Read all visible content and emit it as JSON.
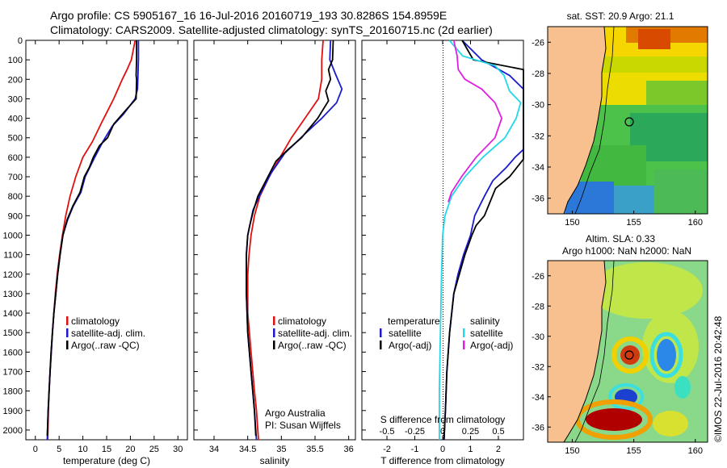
{
  "header": {
    "line1": "Argo profile: CS 5905167_16 16-Jul-2016 20160719_193 30.8286S 154.8959E",
    "line2": "Climatology: CARS2009. Satellite-adjusted climatology: synTS_20160715.nc (2d earlier)"
  },
  "colors": {
    "climatology": "#e01010",
    "satellite": "#1a1acc",
    "argo": "#000000",
    "salinity_satellite": "#22d8e8",
    "salinity_argo": "#e020e0"
  },
  "chart_data": [
    {
      "type": "line",
      "id": "temperature",
      "xlabel": "temperature (deg C)",
      "ylim": [
        2050,
        0
      ],
      "xlim": [
        -2,
        32
      ],
      "xticks": [
        "0",
        "5",
        "10",
        "15",
        "20",
        "25",
        "30"
      ],
      "yticks": [
        "0",
        "100",
        "200",
        "300",
        "400",
        "500",
        "600",
        "700",
        "800",
        "900",
        "1000",
        "1100",
        "1200",
        "1300",
        "1400",
        "1500",
        "1600",
        "1700",
        "1800",
        "1900",
        "2000"
      ],
      "legend": [
        "climatology",
        "satellite-adj. clim.",
        "Argo(..raw -QC)"
      ],
      "series": [
        {
          "name": "climatology",
          "color": "#e01010",
          "points": [
            [
              21,
              0
            ],
            [
              20.2,
              100
            ],
            [
              19.3,
              150
            ],
            [
              18.3,
              200
            ],
            [
              16.5,
              300
            ],
            [
              14,
              420
            ],
            [
              12,
              520
            ],
            [
              10,
              600
            ],
            [
              8.5,
              700
            ],
            [
              7.3,
              800
            ],
            [
              6.4,
              900
            ],
            [
              5.7,
              1000
            ],
            [
              5.1,
              1100
            ],
            [
              4.6,
              1200
            ],
            [
              4.2,
              1300
            ],
            [
              3.9,
              1400
            ],
            [
              3.6,
              1500
            ],
            [
              3.35,
              1600
            ],
            [
              3.1,
              1700
            ],
            [
              2.9,
              1800
            ],
            [
              2.75,
              1900
            ],
            [
              2.6,
              2050
            ]
          ]
        },
        {
          "name": "satellite-adj. clim.",
          "color": "#1a1acc",
          "points": [
            [
              21.7,
              0
            ],
            [
              21.7,
              100
            ],
            [
              21.6,
              180
            ],
            [
              21.5,
              250
            ],
            [
              21,
              300
            ],
            [
              18.5,
              380
            ],
            [
              16.2,
              440
            ],
            [
              14.2,
              520
            ],
            [
              12.5,
              600
            ],
            [
              10.5,
              700
            ],
            [
              9.6,
              780
            ],
            [
              8,
              850
            ],
            [
              6.8,
              920
            ],
            [
              5.8,
              1000
            ],
            [
              5.2,
              1100
            ],
            [
              4.7,
              1200
            ],
            [
              4.3,
              1300
            ],
            [
              3.9,
              1400
            ],
            [
              3.6,
              1500
            ],
            [
              3.35,
              1600
            ],
            [
              3.1,
              1700
            ],
            [
              2.9,
              1800
            ],
            [
              2.7,
              1900
            ],
            [
              2.5,
              2050
            ]
          ]
        },
        {
          "name": "Argo(..raw -QC)",
          "color": "#000000",
          "points": [
            [
              21.3,
              0
            ],
            [
              21.3,
              100
            ],
            [
              21.2,
              180
            ],
            [
              21.3,
              200
            ],
            [
              21.2,
              300
            ],
            [
              19,
              360
            ],
            [
              16.5,
              430
            ],
            [
              15.2,
              500
            ],
            [
              13.5,
              540
            ],
            [
              12.2,
              600
            ],
            [
              11.4,
              650
            ],
            [
              10.3,
              700
            ],
            [
              9.4,
              780
            ],
            [
              7.9,
              850
            ],
            [
              6.7,
              920
            ],
            [
              5.8,
              1000
            ],
            [
              5.2,
              1100
            ],
            [
              4.7,
              1200
            ],
            [
              4.3,
              1300
            ],
            [
              3.9,
              1400
            ],
            [
              3.6,
              1500
            ],
            [
              3.3,
              1600
            ],
            [
              3.1,
              1700
            ],
            [
              2.9,
              1800
            ],
            [
              2.7,
              1900
            ],
            [
              2.5,
              2030
            ]
          ]
        }
      ]
    },
    {
      "type": "line",
      "id": "salinity",
      "xlabel": "salinity",
      "ylim": [
        2050,
        0
      ],
      "xlim": [
        33.7,
        36.1
      ],
      "xticks": [
        "34",
        "34.5",
        "35",
        "35.5",
        "36"
      ],
      "legend": [
        "climatology",
        "satellite-adj. clim.",
        "Argo(..raw -QC)"
      ],
      "annotation": [
        "Argo Australia",
        "PI: Susan Wijffels"
      ],
      "series": [
        {
          "name": "climatology",
          "color": "#e01010",
          "points": [
            [
              35.62,
              0
            ],
            [
              35.6,
              100
            ],
            [
              35.6,
              200
            ],
            [
              35.55,
              300
            ],
            [
              35.35,
              400
            ],
            [
              35.15,
              500
            ],
            [
              34.98,
              600
            ],
            [
              34.82,
              700
            ],
            [
              34.68,
              800
            ],
            [
              34.6,
              900
            ],
            [
              34.55,
              1000
            ],
            [
              34.52,
              1100
            ],
            [
              34.5,
              1200
            ],
            [
              34.5,
              1400
            ],
            [
              34.55,
              1600
            ],
            [
              34.6,
              1800
            ],
            [
              34.63,
              1900
            ],
            [
              34.66,
              2050
            ]
          ]
        },
        {
          "name": "satellite-adj. clim.",
          "color": "#1a1acc",
          "points": [
            [
              35.73,
              0
            ],
            [
              35.72,
              100
            ],
            [
              35.8,
              170
            ],
            [
              35.9,
              250
            ],
            [
              35.82,
              320
            ],
            [
              35.6,
              400
            ],
            [
              35.35,
              480
            ],
            [
              35.05,
              580
            ],
            [
              34.85,
              680
            ],
            [
              34.7,
              780
            ],
            [
              34.58,
              870
            ],
            [
              34.53,
              950
            ],
            [
              34.5,
              1000
            ],
            [
              34.48,
              1100
            ],
            [
              34.48,
              1300
            ],
            [
              34.5,
              1500
            ],
            [
              34.55,
              1700
            ],
            [
              34.6,
              1900
            ],
            [
              34.63,
              2050
            ]
          ]
        },
        {
          "name": "Argo(..raw -QC)",
          "color": "#000000",
          "points": [
            [
              35.77,
              0
            ],
            [
              35.76,
              100
            ],
            [
              35.7,
              150
            ],
            [
              35.73,
              200
            ],
            [
              35.66,
              260
            ],
            [
              35.7,
              310
            ],
            [
              35.54,
              400
            ],
            [
              35.3,
              500
            ],
            [
              35.1,
              560
            ],
            [
              34.92,
              620
            ],
            [
              34.8,
              700
            ],
            [
              34.65,
              800
            ],
            [
              34.58,
              880
            ],
            [
              34.53,
              950
            ],
            [
              34.5,
              1000
            ],
            [
              34.48,
              1100
            ],
            [
              34.48,
              1300
            ],
            [
              34.5,
              1500
            ],
            [
              34.55,
              1700
            ],
            [
              34.6,
              1900
            ],
            [
              34.62,
              2030
            ]
          ]
        }
      ]
    },
    {
      "type": "line",
      "id": "difference",
      "xlabel": "T difference from climatology",
      "xlabel_top": "S difference from climatology",
      "xlim": [
        -2.9,
        2.9
      ],
      "ylim": [
        2050,
        0
      ],
      "xticks": [
        "-2",
        "-1",
        "0",
        "1",
        "2"
      ],
      "xticks_top": [
        "-0.5",
        "-0.25",
        "0",
        "0.25",
        "0.5"
      ],
      "legend_left": {
        "title": "temperature",
        "items": [
          "satellite",
          "Argo(-adj)"
        ]
      },
      "legend_right": {
        "title": "salinity",
        "items": [
          "satellite",
          "Argo(-adj)"
        ]
      },
      "series": [
        {
          "name": "T satellite",
          "color": "#1a1acc",
          "points": [
            [
              0.7,
              0
            ],
            [
              1.4,
              100
            ],
            [
              2.4,
              180
            ],
            [
              2.9,
              250
            ],
            [
              2.9,
              560
            ],
            [
              2.6,
              600
            ],
            [
              2.3,
              650
            ],
            [
              1.8,
              720
            ],
            [
              1.5,
              800
            ],
            [
              1.15,
              900
            ],
            [
              1.0,
              1000
            ],
            [
              0.75,
              1100
            ],
            [
              0.55,
              1200
            ],
            [
              0.4,
              1300
            ],
            [
              0.25,
              1500
            ],
            [
              0.15,
              1700
            ],
            [
              0.1,
              1900
            ],
            [
              0.05,
              2050
            ]
          ]
        },
        {
          "name": "T Argo(-adj)",
          "color": "#000000",
          "points": [
            [
              0.7,
              0
            ],
            [
              1.1,
              100
            ],
            [
              2.9,
              150
            ],
            [
              2.9,
              610
            ],
            [
              2.4,
              700
            ],
            [
              1.9,
              760
            ],
            [
              1.5,
              900
            ],
            [
              1.2,
              950
            ],
            [
              1.05,
              1000
            ],
            [
              0.8,
              1100
            ],
            [
              0.6,
              1200
            ],
            [
              0.4,
              1300
            ],
            [
              0.25,
              1500
            ],
            [
              0.15,
              1700
            ],
            [
              0.1,
              1900
            ],
            [
              0.05,
              2050
            ]
          ]
        },
        {
          "name": "S satellite",
          "color": "#22d8e8",
          "points": [
            [
              0.06,
              0
            ],
            [
              0.18,
              80
            ],
            [
              0.47,
              130
            ],
            [
              0.55,
              180
            ],
            [
              0.6,
              260
            ],
            [
              0.7,
              320
            ],
            [
              0.66,
              400
            ],
            [
              0.56,
              500
            ],
            [
              0.36,
              600
            ],
            [
              0.2,
              700
            ],
            [
              0.08,
              800
            ],
            [
              0.02,
              900
            ],
            [
              0,
              1000
            ],
            [
              -0.01,
              1200
            ],
            [
              -0.02,
              1500
            ],
            [
              -0.03,
              1800
            ],
            [
              -0.03,
              2050
            ]
          ]
        },
        {
          "name": "S Argo(-adj)",
          "color": "#e020e0",
          "points": [
            [
              0.1,
              0
            ],
            [
              0.13,
              80
            ],
            [
              0.14,
              150
            ],
            [
              0.2,
              200
            ],
            [
              0.35,
              250
            ],
            [
              0.47,
              320
            ],
            [
              0.53,
              400
            ],
            [
              0.47,
              500
            ],
            [
              0.3,
              600
            ],
            [
              0.17,
              700
            ],
            [
              0.08,
              780
            ],
            [
              0.05,
              830
            ]
          ]
        }
      ]
    },
    {
      "type": "heatmap",
      "id": "sst_map",
      "title": "sat. SST: 20.9 Argo: 21.1",
      "xticks": [
        "150",
        "155",
        "160"
      ],
      "yticks": [
        "-26",
        "-28",
        "-30",
        "-32",
        "-34",
        "-36"
      ],
      "xlim": [
        148,
        161
      ],
      "ylim": [
        -37,
        -25
      ]
    },
    {
      "type": "heatmap",
      "id": "sla_map",
      "title": "Altim. SLA: 0.33",
      "subtitle": "Argo h1000: NaN h2000: NaN",
      "xticks": [
        "150",
        "155",
        "160"
      ],
      "yticks": [
        "-26",
        "-28",
        "-30",
        "-32",
        "-34",
        "-36"
      ],
      "xlim": [
        148,
        161
      ],
      "ylim": [
        -37,
        -25
      ]
    }
  ],
  "footer": {
    "credit": "©IMOS 22-Jul-2016 20:42:48"
  }
}
